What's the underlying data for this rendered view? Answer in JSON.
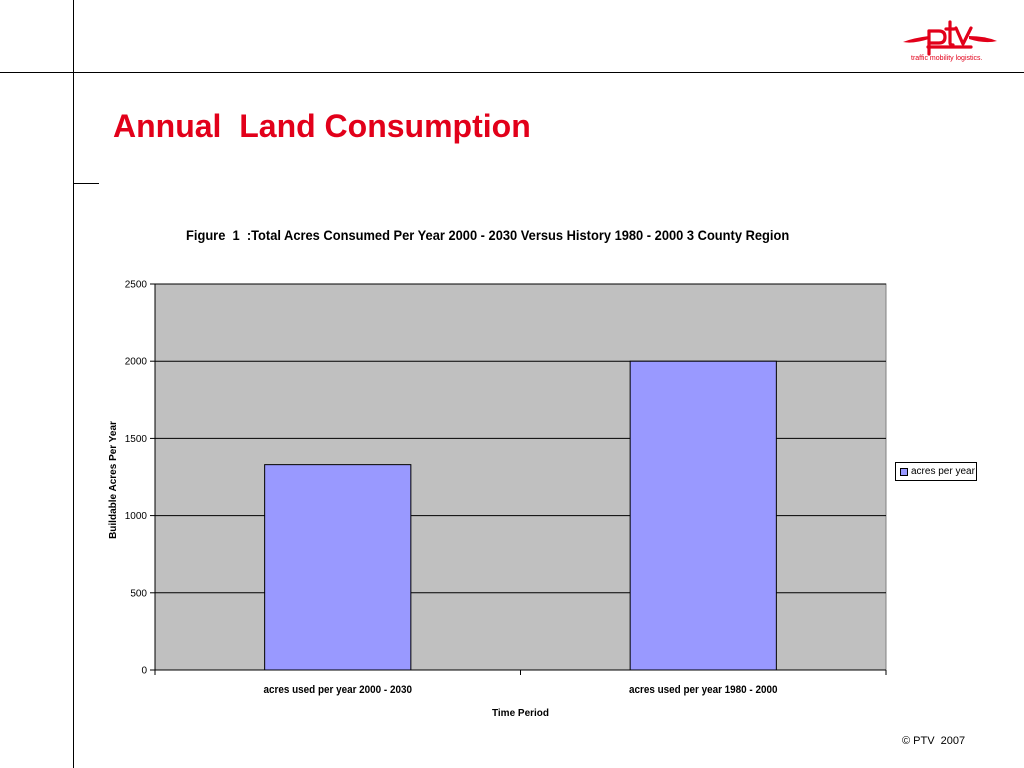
{
  "slide": {
    "title": "Annual  Land Consumption",
    "footer": "© PTV  2007",
    "logo_text": "ptv",
    "logo_tagline": "traffic mobility logistics.",
    "brand_color": "#e2001a"
  },
  "chart_data": {
    "type": "bar",
    "title": "Figure  1  :Total Acres Consumed Per Year 2000 - 2030 Versus History 1980 - 2000 3 County Region",
    "categories": [
      "acres used per year 2000 - 2030",
      "acres used per year 1980 - 2000"
    ],
    "series": [
      {
        "name": "acres per year",
        "values": [
          1330,
          2000
        ],
        "color": "#9999ff"
      }
    ],
    "xlabel": "Time Period",
    "ylabel": "Buildable Acres Per Year",
    "ylim": [
      0,
      2500
    ],
    "yticks": [
      0,
      500,
      1000,
      1500,
      2000,
      2500
    ],
    "grid": true,
    "plot_background": "#c0c0c0",
    "legend_position": "right"
  }
}
